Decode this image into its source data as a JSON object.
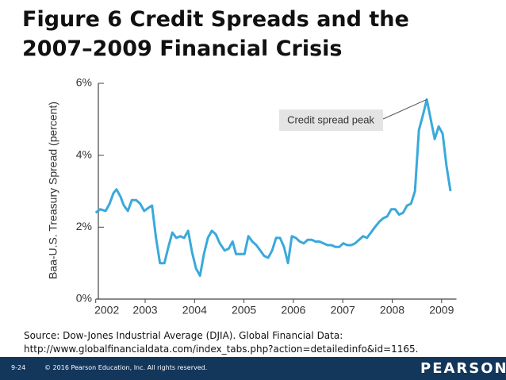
{
  "chart_data": {
    "type": "line",
    "title": "Figure 6 Credit Spreads and the 2007–2009 Financial Crisis",
    "ylabel": "Baa-U.S. Treasury Spread (percent)",
    "annotation": "Credit spread peak",
    "source": [
      "Source: Dow-Jones Industrial Average (DJIA). Global Financial Data:",
      "http://www.globalfinancialdata.com/index_tabs.php?action=detailedinfo&id=1165."
    ],
    "color": "#3aa9dc",
    "xlim": [
      2002,
      2009.3
    ],
    "xticks": [
      2002,
      2003,
      2004,
      2005,
      2006,
      2007,
      2008,
      2009
    ],
    "ylim": [
      0,
      6
    ],
    "yticks": [
      {
        "value": 0,
        "label": "0%"
      },
      {
        "value": 2,
        "label": "2%"
      },
      {
        "value": 4,
        "label": "4%"
      },
      {
        "value": 6,
        "label": "6%"
      }
    ],
    "x": [
      2002.0,
      2002.09,
      2002.2,
      2002.28,
      2002.36,
      2002.42,
      2002.5,
      2002.57,
      2002.65,
      2002.73,
      2002.82,
      2002.9,
      2002.98,
      2003.08,
      2003.14,
      2003.22,
      2003.3,
      2003.39,
      2003.47,
      2003.55,
      2003.63,
      2003.71,
      2003.79,
      2003.87,
      2003.95,
      2004.03,
      2004.11,
      2004.19,
      2004.27,
      2004.35,
      2004.43,
      2004.51,
      2004.61,
      2004.69,
      2004.77,
      2004.84,
      2004.92,
      2005.01,
      2005.09,
      2005.17,
      2005.25,
      2005.33,
      2005.41,
      2005.49,
      2005.57,
      2005.65,
      2005.73,
      2005.81,
      2005.89,
      2005.97,
      2006.05,
      2006.13,
      2006.21,
      2006.29,
      2006.37,
      2006.45,
      2006.53,
      2006.61,
      2006.69,
      2006.77,
      2006.85,
      2006.93,
      2007.01,
      2007.09,
      2007.17,
      2007.25,
      2007.33,
      2007.41,
      2007.49,
      2007.57,
      2007.65,
      2007.74,
      2007.82,
      2007.9,
      2007.98,
      2008.06,
      2008.14,
      2008.22,
      2008.3,
      2008.38,
      2008.46,
      2008.54,
      2008.62,
      2008.7,
      2008.78,
      2008.86,
      2008.94,
      2009.02,
      2009.1,
      2009.18
    ],
    "values": [
      2.4,
      2.5,
      2.45,
      2.65,
      2.95,
      3.05,
      2.85,
      2.6,
      2.45,
      2.75,
      2.75,
      2.65,
      2.45,
      2.55,
      2.6,
      1.7,
      1.0,
      1.0,
      1.45,
      1.85,
      1.7,
      1.75,
      1.7,
      1.9,
      1.3,
      0.85,
      0.65,
      1.25,
      1.7,
      1.9,
      1.8,
      1.55,
      1.35,
      1.4,
      1.6,
      1.25,
      1.25,
      1.25,
      1.75,
      1.6,
      1.5,
      1.35,
      1.2,
      1.15,
      1.35,
      1.7,
      1.7,
      1.45,
      1.0,
      1.75,
      1.7,
      1.6,
      1.55,
      1.65,
      1.65,
      1.6,
      1.6,
      1.55,
      1.5,
      1.5,
      1.45,
      1.45,
      1.55,
      1.5,
      1.5,
      1.55,
      1.65,
      1.75,
      1.7,
      1.85,
      2.0,
      2.15,
      2.25,
      2.3,
      2.5,
      2.5,
      2.35,
      2.4,
      2.6,
      2.65,
      3.0,
      4.7,
      5.1,
      5.55,
      5.0,
      4.45,
      4.8,
      4.6,
      3.7,
      3.0
    ]
  },
  "footer": {
    "page": "9-24",
    "copyright": "© 2016 Pearson Education, Inc. All rights reserved.",
    "brand": "PEARSON"
  }
}
